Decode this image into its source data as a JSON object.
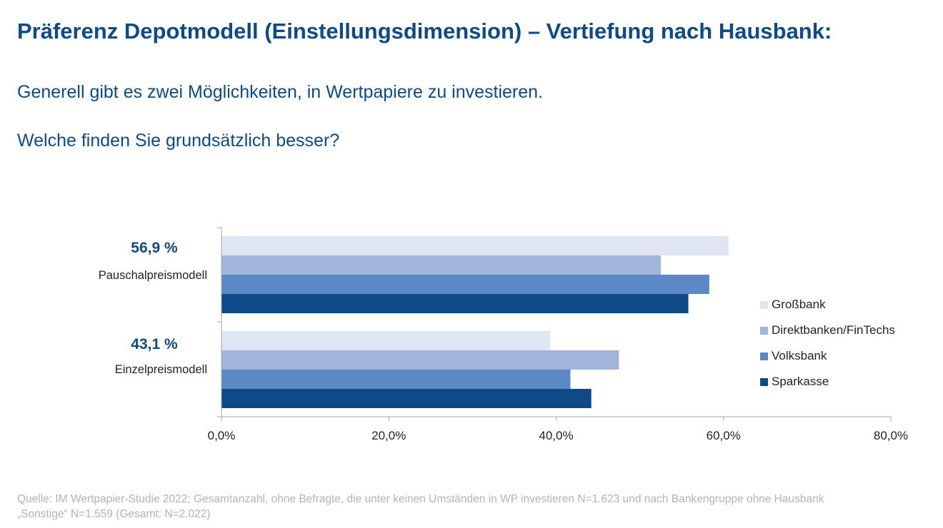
{
  "header": {
    "title": "Präferenz Depotmodell (Einstellungsdimension) – Vertiefung nach Hausbank:",
    "question_line1": "Generell gibt es zwei Möglichkeiten, in Wertpapiere zu investieren.",
    "question_line2": "Welche finden Sie grundsätzlich besser?"
  },
  "chart_data": {
    "type": "bar",
    "orientation": "horizontal",
    "categories": [
      "Pauschalpreismodell",
      "Einzelpreismodell"
    ],
    "category_totals": [
      "56,9 %",
      "43,1 %"
    ],
    "series": [
      {
        "name": "Großbank",
        "values": [
          60.6,
          39.3
        ],
        "color": "#e0e5f3"
      },
      {
        "name": "Direktbanken/FinTechs",
        "values": [
          52.5,
          47.5
        ],
        "color": "#a2b4dc"
      },
      {
        "name": "Volksbank",
        "values": [
          58.3,
          41.7
        ],
        "color": "#5a89c6"
      },
      {
        "name": "Sparkasse",
        "values": [
          55.8,
          44.2
        ],
        "color": "#0d4a87"
      }
    ],
    "xlim": [
      0,
      80
    ],
    "xticks": [
      0,
      20,
      40,
      60,
      80
    ],
    "xtick_labels": [
      "0,0%",
      "20,0%",
      "40,0%",
      "60,0%",
      "80,0%"
    ],
    "legend_placement": "right",
    "grid": false
  },
  "footer": {
    "source_line1": "Quelle: IM Wertpapier-Studie 2022; Gesamtanzahl, ohne Befragte, die unter keinen Umständen in WP investieren N=1.623 und nach Bankengruppe ohne Hausbank",
    "source_line2": "„Sonstige“ N=1.559 (Gesamt: N=2.022)"
  }
}
